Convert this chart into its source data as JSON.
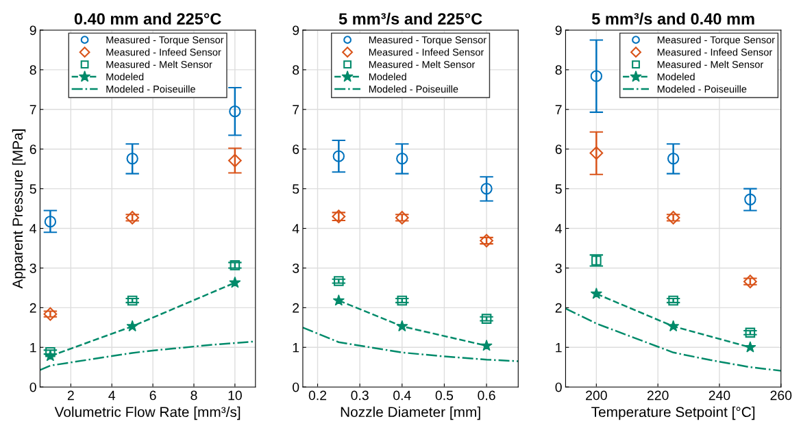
{
  "chart_data": [
    {
      "type": "scatter",
      "title": "0.40 mm and 225°C",
      "xlabel": "Volumetric Flow Rate [mm³/s]",
      "ylabel": "Apparent Pressure [MPa]",
      "xlim": [
        0.5,
        11
      ],
      "xticks": [
        2,
        4,
        6,
        8,
        10
      ],
      "ylim": [
        0,
        9
      ],
      "yticks": [
        0,
        1,
        2,
        3,
        4,
        5,
        6,
        7,
        8,
        9
      ],
      "grid": true,
      "legend": "top",
      "series": [
        {
          "name": "Measured - Torque Sensor",
          "color": "#0072bd",
          "marker": "circle",
          "x": [
            1,
            5,
            10
          ],
          "values": [
            4.17,
            5.76,
            6.95
          ],
          "errors": [
            [
              3.9,
              4.45
            ],
            [
              5.38,
              6.13
            ],
            [
              6.35,
              7.55
            ]
          ]
        },
        {
          "name": "Measured - Infeed Sensor",
          "color": "#d95319",
          "marker": "diamond",
          "x": [
            1,
            5,
            10
          ],
          "values": [
            1.84,
            4.27,
            5.71
          ],
          "errors": [
            [
              1.77,
              1.91
            ],
            [
              4.19,
              4.35
            ],
            [
              5.4,
              6.02
            ]
          ]
        },
        {
          "name": "Measured - Melt Sensor",
          "color": "#008a6a",
          "marker": "square",
          "x": [
            1,
            5,
            10
          ],
          "values": [
            0.88,
            2.18,
            3.07
          ],
          "errors": [
            [
              0.83,
              0.93
            ],
            [
              2.13,
              2.23
            ],
            [
              3.0,
              3.14
            ]
          ]
        },
        {
          "name": "Modeled",
          "type": "line",
          "color": "#008a6a",
          "marker": "star",
          "line_style": "dashed",
          "x": [
            1,
            5,
            10
          ],
          "values": [
            0.78,
            1.53,
            2.63
          ]
        },
        {
          "name": "Modeled - Poiseuille",
          "type": "line",
          "color": "#008a6a",
          "marker": "none",
          "line_style": "dashdot",
          "x": [
            0.5,
            1,
            2,
            3,
            4,
            5,
            6,
            7,
            8,
            9,
            10,
            11
          ],
          "values": [
            0.43,
            0.54,
            0.62,
            0.7,
            0.78,
            0.86,
            0.92,
            0.97,
            1.02,
            1.07,
            1.11,
            1.15
          ]
        }
      ]
    },
    {
      "type": "scatter",
      "title": "5 mm³/s and 225°C",
      "xlabel": "Nozzle Diameter [mm]",
      "xlim": [
        0.165,
        0.675
      ],
      "xticks": [
        0.2,
        0.3,
        0.4,
        0.5,
        0.6
      ],
      "ylim": [
        0,
        9
      ],
      "yticks": [
        0,
        1,
        2,
        3,
        4,
        5,
        6,
        7,
        8,
        9
      ],
      "grid": true,
      "legend": "top",
      "series": [
        {
          "name": "Measured - Torque Sensor",
          "color": "#0072bd",
          "marker": "circle",
          "x": [
            0.25,
            0.4,
            0.6
          ],
          "values": [
            5.82,
            5.76,
            5.0
          ],
          "errors": [
            [
              5.42,
              6.22
            ],
            [
              5.38,
              6.13
            ],
            [
              4.69,
              5.3
            ]
          ]
        },
        {
          "name": "Measured - Infeed Sensor",
          "color": "#d95319",
          "marker": "diamond",
          "x": [
            0.25,
            0.4,
            0.6
          ],
          "values": [
            4.3,
            4.27,
            3.69
          ],
          "errors": [
            [
              4.2,
              4.4
            ],
            [
              4.19,
              4.35
            ],
            [
              3.61,
              3.77
            ]
          ]
        },
        {
          "name": "Measured - Melt Sensor",
          "color": "#008a6a",
          "marker": "square",
          "x": [
            0.25,
            0.4,
            0.6
          ],
          "values": [
            2.67,
            2.18,
            1.72
          ],
          "errors": [
            [
              2.62,
              2.72
            ],
            [
              2.13,
              2.23
            ],
            [
              1.67,
              1.77
            ]
          ]
        },
        {
          "name": "Modeled",
          "type": "line",
          "color": "#008a6a",
          "marker": "star",
          "line_style": "dashed",
          "x": [
            0.25,
            0.4,
            0.6
          ],
          "values": [
            2.18,
            1.53,
            1.04
          ]
        },
        {
          "name": "Modeled - Poiseuille",
          "type": "line",
          "color": "#008a6a",
          "marker": "none",
          "line_style": "dashdot",
          "x": [
            0.165,
            0.25,
            0.4,
            0.5,
            0.6,
            0.675
          ],
          "values": [
            1.5,
            1.13,
            0.87,
            0.77,
            0.69,
            0.65
          ]
        }
      ]
    },
    {
      "type": "scatter",
      "title": "5 mm³/s and 0.40 mm",
      "xlabel": "Temperature Setpoint [°C]",
      "xlim": [
        190,
        260
      ],
      "xticks": [
        200,
        220,
        240,
        260
      ],
      "ylim": [
        0,
        9
      ],
      "yticks": [
        0,
        1,
        2,
        3,
        4,
        5,
        6,
        7,
        8,
        9
      ],
      "grid": true,
      "legend": "top right",
      "series": [
        {
          "name": "Measured - Torque Sensor",
          "color": "#0072bd",
          "marker": "circle",
          "x": [
            200,
            225,
            250
          ],
          "values": [
            7.84,
            5.76,
            4.73
          ],
          "errors": [
            [
              6.93,
              8.75
            ],
            [
              5.38,
              6.13
            ],
            [
              4.45,
              5.0
            ]
          ]
        },
        {
          "name": "Measured - Infeed Sensor",
          "color": "#d95319",
          "marker": "diamond",
          "x": [
            200,
            225,
            250
          ],
          "values": [
            5.9,
            4.27,
            2.66
          ],
          "errors": [
            [
              5.36,
              6.43
            ],
            [
              4.19,
              4.35
            ],
            [
              2.58,
              2.74
            ]
          ]
        },
        {
          "name": "Measured - Melt Sensor",
          "color": "#008a6a",
          "marker": "square",
          "x": [
            200,
            225,
            250
          ],
          "values": [
            3.19,
            2.18,
            1.37
          ],
          "errors": [
            [
              3.05,
              3.33
            ],
            [
              2.13,
              2.23
            ],
            [
              1.32,
              1.42
            ]
          ]
        },
        {
          "name": "Modeled",
          "type": "line",
          "color": "#008a6a",
          "marker": "star",
          "line_style": "dashed",
          "x": [
            200,
            225,
            250
          ],
          "values": [
            2.35,
            1.53,
            1.0
          ]
        },
        {
          "name": "Modeled - Poiseuille",
          "type": "line",
          "color": "#008a6a",
          "marker": "none",
          "line_style": "dashdot",
          "x": [
            190,
            200,
            212,
            225,
            237,
            250,
            260
          ],
          "values": [
            1.98,
            1.6,
            1.25,
            0.87,
            0.68,
            0.5,
            0.41
          ]
        }
      ]
    }
  ]
}
